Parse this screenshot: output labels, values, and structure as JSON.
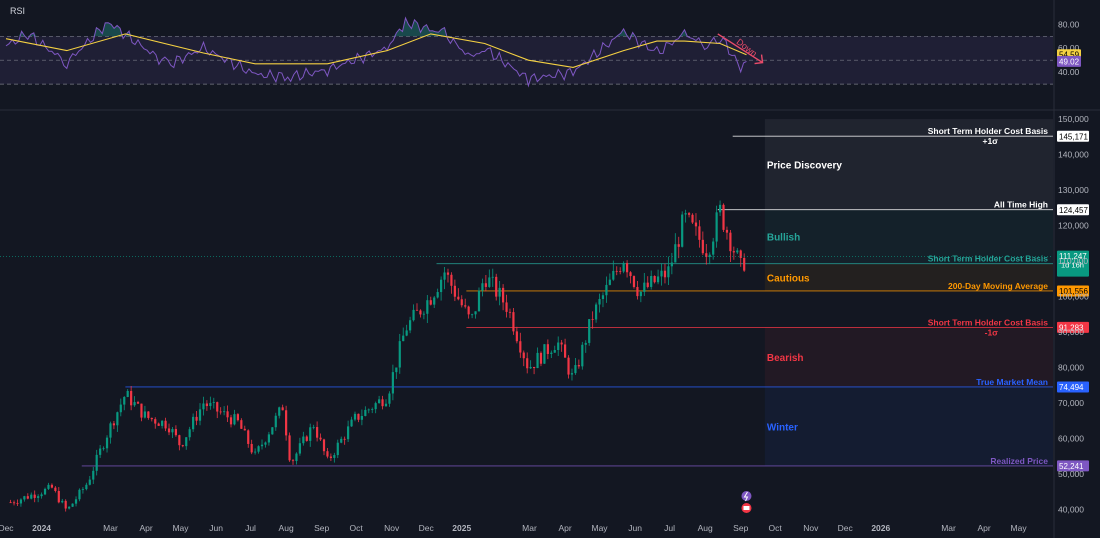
{
  "rsi_panel": {
    "title": "RSI",
    "ticks": [
      {
        "label": "80.00",
        "value": 80
      },
      {
        "label": "60.00",
        "value": 60
      },
      {
        "label": "40.00",
        "value": 40
      }
    ],
    "upper_band": 70,
    "mid_band": 50,
    "lower_band": 30,
    "badges": [
      {
        "label": "54.59",
        "value": 54.59,
        "color": "#f5d142",
        "text_color": "#000000"
      },
      {
        "label": "49.02",
        "value": 49.02,
        "color": "#7e57c2",
        "text_color": "#ffffff"
      }
    ],
    "annotation": {
      "text": "Down",
      "color": "#e94b6a"
    }
  },
  "price_axis": {
    "ticks": [
      "150,000",
      "140,000",
      "130,000",
      "120,000",
      "110,000",
      "100,000",
      "90,000",
      "80,000",
      "70,000",
      "60,000",
      "50,000",
      "40,000"
    ]
  },
  "time_axis": {
    "ticks": [
      {
        "label": "Dec",
        "bold": false,
        "date": "2023-12-01"
      },
      {
        "label": "2024",
        "bold": true,
        "date": "2024-01-01"
      },
      {
        "label": "Mar",
        "bold": false,
        "date": "2024-03-01"
      },
      {
        "label": "Apr",
        "bold": false,
        "date": "2024-04-01"
      },
      {
        "label": "May",
        "bold": false,
        "date": "2024-05-01"
      },
      {
        "label": "Jun",
        "bold": false,
        "date": "2024-06-01"
      },
      {
        "label": "Jul",
        "bold": false,
        "date": "2024-07-01"
      },
      {
        "label": "Aug",
        "bold": false,
        "date": "2024-08-01"
      },
      {
        "label": "Sep",
        "bold": false,
        "date": "2024-09-01"
      },
      {
        "label": "Oct",
        "bold": false,
        "date": "2024-10-01"
      },
      {
        "label": "Nov",
        "bold": false,
        "date": "2024-11-01"
      },
      {
        "label": "Dec",
        "bold": false,
        "date": "2024-12-01"
      },
      {
        "label": "2025",
        "bold": true,
        "date": "2025-01-01"
      },
      {
        "label": "Mar",
        "bold": false,
        "date": "2025-03-01"
      },
      {
        "label": "Apr",
        "bold": false,
        "date": "2025-04-01"
      },
      {
        "label": "May",
        "bold": false,
        "date": "2025-05-01"
      },
      {
        "label": "Jun",
        "bold": false,
        "date": "2025-06-01"
      },
      {
        "label": "Jul",
        "bold": false,
        "date": "2025-07-01"
      },
      {
        "label": "Aug",
        "bold": false,
        "date": "2025-08-01"
      },
      {
        "label": "Sep",
        "bold": false,
        "date": "2025-09-01"
      },
      {
        "label": "Oct",
        "bold": false,
        "date": "2025-10-01"
      },
      {
        "label": "Nov",
        "bold": false,
        "date": "2025-11-01"
      },
      {
        "label": "Dec",
        "bold": false,
        "date": "2025-12-01"
      },
      {
        "label": "2026",
        "bold": true,
        "date": "2026-01-01"
      },
      {
        "label": "Mar",
        "bold": false,
        "date": "2026-03-01"
      },
      {
        "label": "Apr",
        "bold": false,
        "date": "2026-04-01"
      },
      {
        "label": "May",
        "bold": false,
        "date": "2026-05-01"
      }
    ]
  },
  "levels": [
    {
      "name": "Short Term Holder Cost Basis",
      "sub": "+1σ",
      "value": 145171,
      "label": "145,171",
      "color": "#ffffff",
      "badge_text": "#000000"
    },
    {
      "name": "All Time High",
      "sub": "",
      "value": 124457,
      "label": "124,457",
      "color": "#ffffff",
      "badge_text": "#000000"
    },
    {
      "name": "Short Term Holder Cost Basis",
      "sub": "",
      "value": 109236,
      "label": "109,236",
      "color": "#26a69a",
      "badge_text": "#ffffff"
    },
    {
      "name": "200-Day Moving Average",
      "sub": "",
      "value": 101556,
      "label": "101,556",
      "color": "#ff9800",
      "badge_text": "#000000"
    },
    {
      "name": "Short Term Holder Cost Basis",
      "sub": "-1σ",
      "value": 91283,
      "label": "91,283",
      "color": "#f23645",
      "badge_text": "#ffffff"
    },
    {
      "name": "True Market Mean",
      "sub": "",
      "value": 74494,
      "label": "74,494",
      "color": "#2962ff",
      "badge_text": "#ffffff"
    },
    {
      "name": "Realized Price",
      "sub": "",
      "value": 52241,
      "label": "52,241",
      "color": "#7e57c2",
      "badge_text": "#ffffff"
    }
  ],
  "current_price": {
    "label": "111,247",
    "countdown": "1d 16h",
    "value": 111247,
    "color": "#089981"
  },
  "zones": [
    {
      "name": "Price Discovery",
      "from": 124457,
      "to": 150000,
      "color": "#ffffff",
      "fill": "#ffffff",
      "opacity": 0.06
    },
    {
      "name": "Bullish",
      "from": 109236,
      "to": 124457,
      "color": "#26a69a",
      "fill": "#26a69a",
      "opacity": 0.07
    },
    {
      "name": "Cautious",
      "from": 101556,
      "to": 109236,
      "color": "#ff9800",
      "fill": "#ff9800",
      "opacity": 0.07
    },
    {
      "name": "Bearish",
      "from": 74494,
      "to": 91283,
      "color": "#f23645",
      "fill": "#f23645",
      "opacity": 0.07
    },
    {
      "name": "Winter",
      "from": 52241,
      "to": 74494,
      "color": "#2962ff",
      "fill": "#2962ff",
      "opacity": 0.07
    }
  ],
  "chart_data": {
    "type": "candlestick",
    "title": "",
    "ylim": [
      37000,
      152000
    ],
    "xlim": [
      "2023-12-01",
      "2026-05-31"
    ],
    "grid": false,
    "up_color": "#089981",
    "down_color": "#f23645",
    "series": [
      {
        "start": "2023-12-05",
        "value": 42000
      },
      {
        "start": "2024-01-10",
        "value": 46000
      },
      {
        "start": "2024-01-23",
        "value": 39500
      },
      {
        "start": "2024-02-10",
        "value": 47500
      },
      {
        "start": "2024-02-28",
        "value": 62000
      },
      {
        "start": "2024-03-14",
        "value": 72500
      },
      {
        "start": "2024-04-01",
        "value": 66000
      },
      {
        "start": "2024-04-20",
        "value": 64000
      },
      {
        "start": "2024-05-01",
        "value": 58000
      },
      {
        "start": "2024-05-21",
        "value": 70000
      },
      {
        "start": "2024-06-20",
        "value": 64500
      },
      {
        "start": "2024-07-05",
        "value": 55000
      },
      {
        "start": "2024-07-29",
        "value": 69000
      },
      {
        "start": "2024-08-05",
        "value": 53000
      },
      {
        "start": "2024-08-25",
        "value": 64000
      },
      {
        "start": "2024-09-06",
        "value": 53500
      },
      {
        "start": "2024-09-30",
        "value": 65500
      },
      {
        "start": "2024-10-28",
        "value": 72000
      },
      {
        "start": "2024-11-13",
        "value": 91000
      },
      {
        "start": "2024-12-05",
        "value": 100000
      },
      {
        "start": "2024-12-17",
        "value": 107000
      },
      {
        "start": "2025-01-09",
        "value": 92500
      },
      {
        "start": "2025-01-21",
        "value": 106000
      },
      {
        "start": "2025-02-10",
        "value": 97000
      },
      {
        "start": "2025-02-28",
        "value": 80000
      },
      {
        "start": "2025-03-25",
        "value": 87500
      },
      {
        "start": "2025-04-08",
        "value": 76500
      },
      {
        "start": "2025-04-25",
        "value": 94500
      },
      {
        "start": "2025-05-22",
        "value": 111000
      },
      {
        "start": "2025-06-05",
        "value": 101000
      },
      {
        "start": "2025-06-30",
        "value": 107000
      },
      {
        "start": "2025-07-14",
        "value": 122000
      },
      {
        "start": "2025-08-03",
        "value": 113000
      },
      {
        "start": "2025-08-14",
        "value": 124000
      },
      {
        "start": "2025-09-01",
        "value": 108000
      },
      {
        "start": "2025-09-06",
        "value": 111247
      }
    ],
    "rsi": [
      {
        "start": "2023-12-01",
        "value": 62
      },
      {
        "start": "2023-12-20",
        "value": 72
      },
      {
        "start": "2024-01-23",
        "value": 48
      },
      {
        "start": "2024-02-28",
        "value": 82
      },
      {
        "start": "2024-04-20",
        "value": 46
      },
      {
        "start": "2024-05-21",
        "value": 60
      },
      {
        "start": "2024-07-05",
        "value": 38
      },
      {
        "start": "2024-08-05",
        "value": 36
      },
      {
        "start": "2024-09-06",
        "value": 42
      },
      {
        "start": "2024-10-28",
        "value": 60
      },
      {
        "start": "2024-11-13",
        "value": 82
      },
      {
        "start": "2024-12-17",
        "value": 72
      },
      {
        "start": "2025-01-09",
        "value": 52
      },
      {
        "start": "2025-01-21",
        "value": 60
      },
      {
        "start": "2025-02-28",
        "value": 34
      },
      {
        "start": "2025-04-08",
        "value": 40
      },
      {
        "start": "2025-05-22",
        "value": 74
      },
      {
        "start": "2025-06-20",
        "value": 56
      },
      {
        "start": "2025-07-14",
        "value": 72
      },
      {
        "start": "2025-08-03",
        "value": 62
      },
      {
        "start": "2025-08-14",
        "value": 70
      },
      {
        "start": "2025-09-01",
        "value": 44
      },
      {
        "start": "2025-09-06",
        "value": 49.02
      }
    ],
    "rsi_ma": [
      {
        "date": "2023-12-01",
        "value": 68
      },
      {
        "date": "2024-01-23",
        "value": 58
      },
      {
        "date": "2024-03-14",
        "value": 72
      },
      {
        "date": "2024-05-21",
        "value": 56
      },
      {
        "date": "2024-07-05",
        "value": 47
      },
      {
        "date": "2024-09-06",
        "value": 47
      },
      {
        "date": "2024-10-28",
        "value": 58
      },
      {
        "date": "2024-12-05",
        "value": 72
      },
      {
        "date": "2025-01-21",
        "value": 64
      },
      {
        "date": "2025-02-28",
        "value": 50
      },
      {
        "date": "2025-04-08",
        "value": 44
      },
      {
        "date": "2025-05-22",
        "value": 58
      },
      {
        "date": "2025-06-20",
        "value": 66
      },
      {
        "date": "2025-07-14",
        "value": 66
      },
      {
        "date": "2025-08-14",
        "value": 64
      },
      {
        "date": "2025-09-06",
        "value": 54.59
      }
    ]
  }
}
